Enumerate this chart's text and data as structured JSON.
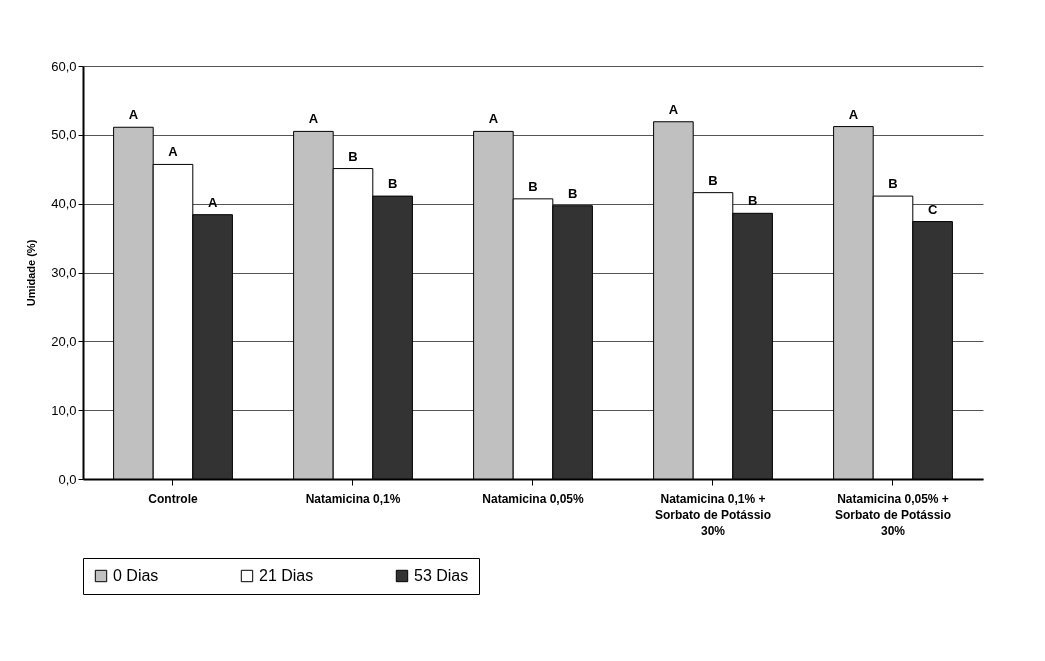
{
  "chart_data": {
    "type": "bar",
    "ylabel": "Umidade (%)",
    "categories": [
      "Controle",
      "Natamicina 0,1%",
      "Natamicina 0,05%",
      "Natamicina 0,1% + Sorbato de Potássio 30%",
      "Natamicina 0,05% + Sorbato de Potássio 30%"
    ],
    "series": [
      {
        "name": "0 Dias",
        "color": "#c0c0c0",
        "values": [
          51.1,
          50.5,
          50.5,
          51.9,
          51.2
        ],
        "value_labels": [
          "A",
          "A",
          "A",
          "A",
          "A"
        ]
      },
      {
        "name": "21 Dias",
        "color": "#ffffff",
        "values": [
          45.7,
          45.1,
          40.7,
          41.6,
          41.1
        ],
        "value_labels": [
          "A",
          "B",
          "B",
          "B",
          "B"
        ]
      },
      {
        "name": "53 Dias",
        "color": "#333333",
        "values": [
          38.4,
          41.1,
          39.7,
          38.6,
          37.4
        ],
        "value_labels": [
          "A",
          "B",
          "B",
          "B",
          "C"
        ]
      }
    ],
    "ylim": [
      0,
      60
    ],
    "yticks": [
      {
        "value": 0,
        "label": "0,0"
      },
      {
        "value": 10,
        "label": "10,0"
      },
      {
        "value": 20,
        "label": "20,0"
      },
      {
        "value": 30,
        "label": "30,0"
      },
      {
        "value": 40,
        "label": "40,0"
      },
      {
        "value": 50,
        "label": "50,0"
      },
      {
        "value": 60,
        "label": "60,0"
      }
    ],
    "grid": "y",
    "legend": "bottom"
  }
}
